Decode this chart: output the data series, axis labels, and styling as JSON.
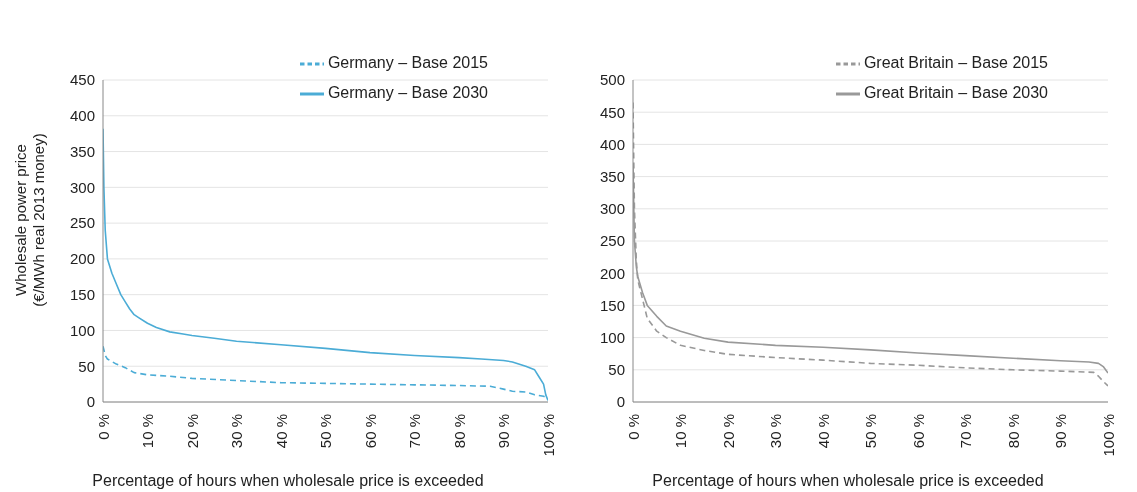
{
  "chart_data": [
    {
      "type": "line",
      "ylabel": "Wholesale power price\n(€/MWh real 2013 money)",
      "xlabel": "Percentage  of hours when wholesale price is exceeded",
      "xlim": [
        0,
        100
      ],
      "xticks": [
        {
          "value": 0,
          "label": "0 %"
        },
        {
          "value": 10,
          "label": "10 %"
        },
        {
          "value": 20,
          "label": "20 %"
        },
        {
          "value": 30,
          "label": "30 %"
        },
        {
          "value": 40,
          "label": "40 %"
        },
        {
          "value": 50,
          "label": "50 %"
        },
        {
          "value": 60,
          "label": "60 %"
        },
        {
          "value": 70,
          "label": "70 %"
        },
        {
          "value": 80,
          "label": "80 %"
        },
        {
          "value": 90,
          "label": "90 %"
        },
        {
          "value": 100,
          "label": "100 %"
        }
      ],
      "ylim": [
        0,
        450
      ],
      "yticks": [
        0,
        50,
        100,
        150,
        200,
        250,
        300,
        350,
        400,
        450
      ],
      "grid": "y",
      "legend": "top right",
      "marker": "none",
      "series": [
        {
          "name": "Germany – Base 2030",
          "color": "#4bacd6",
          "line_style": "solid",
          "x": [
            0,
            0.2,
            0.5,
            1,
            2,
            3,
            4,
            5,
            6,
            7,
            8,
            10,
            12,
            15,
            18,
            20,
            25,
            30,
            40,
            50,
            60,
            70,
            80,
            85,
            90,
            92,
            95,
            97,
            98,
            99,
            99.5,
            100
          ],
          "values": [
            382,
            300,
            240,
            200,
            180,
            165,
            150,
            140,
            130,
            122,
            118,
            110,
            104,
            98,
            95,
            93,
            89,
            85,
            80,
            75,
            69,
            65,
            62,
            60,
            58,
            56,
            50,
            45,
            35,
            25,
            10,
            2
          ]
        },
        {
          "name": "Germany – Base 2015",
          "color": "#4bacd6",
          "line_style": "dashed",
          "x": [
            0,
            0.5,
            1,
            3,
            5,
            7,
            10,
            15,
            20,
            30,
            40,
            50,
            60,
            70,
            80,
            87,
            90,
            92,
            95,
            97,
            99,
            100
          ],
          "values": [
            78,
            65,
            60,
            53,
            48,
            41,
            38,
            36,
            33,
            30,
            27,
            26,
            25,
            24,
            23,
            22,
            18,
            15,
            14,
            10,
            8,
            5
          ]
        }
      ]
    },
    {
      "type": "line",
      "xlabel": "Percentage  of hours when wholesale price is exceeded",
      "xlim": [
        0,
        100
      ],
      "xticks": [
        {
          "value": 0,
          "label": "0 %"
        },
        {
          "value": 10,
          "label": "10 %"
        },
        {
          "value": 20,
          "label": "20 %"
        },
        {
          "value": 30,
          "label": "30 %"
        },
        {
          "value": 40,
          "label": "40 %"
        },
        {
          "value": 50,
          "label": "50 %"
        },
        {
          "value": 60,
          "label": "60 %"
        },
        {
          "value": 70,
          "label": "70 %"
        },
        {
          "value": 80,
          "label": "80 %"
        },
        {
          "value": 90,
          "label": "90 %"
        },
        {
          "value": 100,
          "label": "100 %"
        }
      ],
      "ylim": [
        0,
        500
      ],
      "yticks": [
        0,
        50,
        100,
        150,
        200,
        250,
        300,
        350,
        400,
        450,
        500
      ],
      "grid": "y",
      "legend": "top right",
      "marker": "none",
      "series": [
        {
          "name": "Great Britain – Base 2030",
          "color": "#999999",
          "line_style": "solid",
          "x": [
            0,
            0.3,
            0.7,
            1,
            2,
            3,
            5,
            7,
            10,
            15,
            20,
            30,
            40,
            50,
            60,
            70,
            80,
            90,
            96,
            98,
            99,
            100
          ],
          "values": [
            370,
            250,
            210,
            195,
            170,
            150,
            133,
            118,
            110,
            99,
            93,
            88,
            85,
            81,
            76,
            72,
            68,
            64,
            62,
            60,
            55,
            45
          ]
        },
        {
          "name": "Great Britain – Base 2015",
          "color": "#999999",
          "line_style": "dashed",
          "x": [
            0,
            0.3,
            0.7,
            1,
            2,
            3,
            5,
            7,
            10,
            15,
            20,
            30,
            40,
            50,
            60,
            70,
            80,
            90,
            97,
            98,
            99,
            100
          ],
          "values": [
            465,
            300,
            220,
            190,
            160,
            130,
            110,
            100,
            88,
            80,
            74,
            69,
            65,
            60,
            57,
            53,
            50,
            48,
            46,
            40,
            32,
            25
          ]
        }
      ]
    }
  ]
}
